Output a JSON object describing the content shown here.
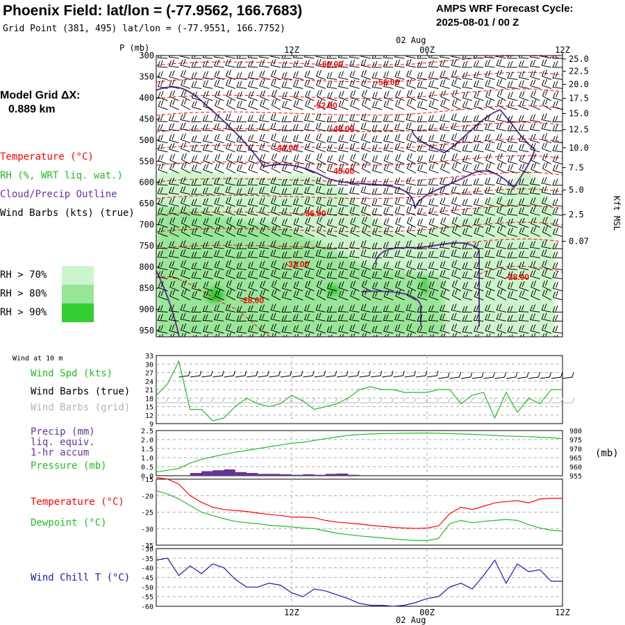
{
  "header": {
    "title": "Phoenix Field:  lat/lon = (-77.9562, 166.7683)",
    "subtitle": "Grid Point (381, 495) lat/lon = (-77.9551, 166.7752)",
    "forecast_label": "AMPS WRF Forecast Cycle:",
    "forecast_cycle": "2025-08-01 / 00  Z",
    "model_grid_label": "Model Grid ΔX:",
    "model_grid_value": "0.889 km"
  },
  "legend": {
    "temperature": "Temperature (°C)",
    "rh": "RH (%, WRT liq. wat.)",
    "cloud": "Cloud/Precip Outline",
    "wind": "Wind Barbs (kts) (true)",
    "rh_bins": [
      {
        "label": "RH > 70%",
        "color": "#ccf5cc"
      },
      {
        "label": "RH > 80%",
        "color": "#99e699"
      },
      {
        "label": "RH > 90%",
        "color": "#33cc33"
      }
    ]
  },
  "colors": {
    "temperature": "#ff0000",
    "rh_light": "#ccf5cc",
    "rh_mid": "#99e699",
    "rh_dark": "#33cc33",
    "cloud": "#663399",
    "wind": "#000000",
    "wind_grid": "#b4b4b4",
    "speed": "#22bb22",
    "pressure": "#22bb22",
    "precip": "#663399",
    "dewpoint": "#22bb22",
    "windchill": "#1a1aaa"
  },
  "chart_data": [
    {
      "type": "heatmap",
      "name": "upper-air cross-section",
      "xlabel_top": [
        "12Z",
        "02 Aug\n00Z",
        "12Z"
      ],
      "x_ticks": [
        {
          "label": "12Z",
          "hour": 12
        },
        {
          "label": "00Z",
          "hour": 24
        },
        {
          "label": "12Z",
          "hour": 36
        }
      ],
      "date_label": "02 Aug",
      "x_range_hours": [
        0,
        36
      ],
      "ylabel": "P (mb)",
      "pressure_ticks": [
        300,
        350,
        400,
        450,
        500,
        550,
        600,
        650,
        700,
        750,
        800,
        850,
        900,
        950
      ],
      "height_label": "Kft MSL",
      "height_ticks": [
        {
          "label": "25.0",
          "p": 308
        },
        {
          "label": "22.5",
          "p": 337
        },
        {
          "label": "20.0",
          "p": 368
        },
        {
          "label": "17.5",
          "p": 401
        },
        {
          "label": "15.0",
          "p": 437
        },
        {
          "label": "12.5",
          "p": 475
        },
        {
          "label": "10.0",
          "p": 518
        },
        {
          "label": "7.5",
          "p": 565
        },
        {
          "label": "5.0",
          "p": 618
        },
        {
          "label": "2.5",
          "p": 676
        },
        {
          "label": "0.07",
          "p": 739
        }
      ],
      "temperature_contours": [
        {
          "label": "-60.00",
          "hour": 15.5,
          "p": 327
        },
        {
          "label": "-56.00",
          "hour": 20.5,
          "p": 370
        },
        {
          "label": "-52.00",
          "hour": 15.0,
          "p": 425
        },
        {
          "label": "-48.00",
          "hour": 16.5,
          "p": 480
        },
        {
          "label": "-44.00",
          "hour": 11.5,
          "p": 525
        },
        {
          "label": "-40.00",
          "hour": 16.5,
          "p": 580
        },
        {
          "label": "-36.00",
          "hour": 14.0,
          "p": 680
        },
        {
          "label": "-32.00",
          "hour": 12.5,
          "p": 800
        },
        {
          "label": "-28.00",
          "hour": 32.0,
          "p": 830
        },
        {
          "label": "-28.00",
          "hour": 8.5,
          "p": 885
        }
      ]
    },
    {
      "type": "line",
      "name": "Wind at 10 m",
      "panel_label": "Wind at 10 m",
      "series_labels": [
        "Wind Spd (kts)",
        "Wind Barbs (true)",
        "Wind Barbs (grid)"
      ],
      "ylim": [
        9,
        33
      ],
      "y_ticks": [
        9,
        12,
        15,
        18,
        21,
        24,
        27,
        30,
        33
      ],
      "x": [
        0,
        1,
        2,
        3,
        4,
        5,
        6,
        7,
        8,
        9,
        10,
        11,
        12,
        13,
        14,
        15,
        16,
        17,
        18,
        19,
        20,
        21,
        22,
        23,
        24,
        25,
        26,
        27,
        28,
        29,
        30,
        31,
        32,
        33,
        34,
        35,
        36
      ],
      "series": [
        {
          "name": "Wind Spd (kts)",
          "values": [
            19,
            23,
            31,
            14,
            14,
            10,
            11,
            15,
            18,
            16,
            15,
            16,
            19,
            17,
            14,
            15,
            16,
            18,
            21,
            22,
            21,
            21,
            20,
            20,
            20,
            21,
            21,
            16,
            19,
            20,
            11,
            20,
            13,
            18,
            16,
            21,
            21
          ]
        }
      ]
    },
    {
      "type": "bar",
      "name": "Precip / Pressure",
      "series_labels": [
        "Precip (mm)",
        "liq. equiv.",
        "1-hr accum",
        "Pressure (mb)"
      ],
      "precip_ylim": [
        0,
        2.5
      ],
      "precip_ticks": [
        "0.0",
        "0.5",
        "1.0",
        "1.5",
        "2.0",
        "2.5"
      ],
      "pressure_ylim": [
        955,
        980
      ],
      "pressure_ticks": [
        "955",
        "960",
        "965",
        "970",
        "975",
        "980"
      ],
      "pressure_unit": "(mb)",
      "x": [
        0,
        1,
        2,
        3,
        4,
        5,
        6,
        7,
        8,
        9,
        10,
        11,
        12,
        13,
        14,
        15,
        16,
        17,
        18,
        19,
        20,
        21,
        22,
        23,
        24,
        25,
        26,
        27,
        28,
        29,
        30,
        31,
        32,
        33,
        34,
        35,
        36
      ],
      "series": [
        {
          "name": "Precip (mm)",
          "values": [
            0,
            0,
            0,
            0.15,
            0.25,
            0.3,
            0.35,
            0.2,
            0.15,
            0.1,
            0.1,
            0.08,
            0.05,
            0.08,
            0.05,
            0.1,
            0.12,
            0.05,
            0,
            0,
            0,
            0,
            0,
            0,
            0,
            0,
            0,
            0,
            0,
            0,
            0,
            0,
            0,
            0,
            0,
            0,
            0
          ]
        },
        {
          "name": "Pressure (mb)",
          "values": [
            957,
            958,
            959,
            962,
            964,
            965.5,
            966.8,
            968,
            969,
            970,
            971,
            972,
            973,
            973.5,
            974.5,
            975.5,
            976.5,
            977.3,
            977.8,
            978.1,
            978.3,
            978.4,
            978.5,
            978.6,
            978.6,
            978.5,
            978.3,
            978.1,
            977.9,
            977.6,
            977.3,
            977,
            976.8,
            976.6,
            976.3,
            976,
            975.5
          ]
        }
      ]
    },
    {
      "type": "line",
      "name": "Temperature / Dewpoint",
      "series_labels": [
        "Temperature (°C)",
        "Dewpoint (°C)"
      ],
      "ylim": [
        -35,
        -15
      ],
      "y_ticks": [
        -35,
        -30,
        -25,
        -20,
        -15
      ],
      "x": [
        0,
        1,
        2,
        3,
        4,
        5,
        6,
        7,
        8,
        9,
        10,
        11,
        12,
        13,
        14,
        15,
        16,
        17,
        18,
        19,
        20,
        21,
        22,
        23,
        24,
        25,
        26,
        27,
        28,
        29,
        30,
        31,
        32,
        33,
        34,
        35,
        36
      ],
      "series": [
        {
          "name": "Temperature (°C)",
          "values": [
            -14.5,
            -15,
            -16.5,
            -20,
            -22,
            -23.5,
            -24.2,
            -24.5,
            -24.8,
            -25.3,
            -25.7,
            -26,
            -26.5,
            -26.5,
            -26.7,
            -27.5,
            -28,
            -28.3,
            -28.6,
            -29,
            -29.3,
            -29.6,
            -29.8,
            -29.9,
            -29.8,
            -29.2,
            -25.5,
            -23.5,
            -24.2,
            -23.2,
            -22.2,
            -21.8,
            -21.5,
            -22.2,
            -21,
            -20.8,
            -20.8
          ]
        },
        {
          "name": "Dewpoint (°C)",
          "values": [
            -18.5,
            -19.5,
            -21,
            -23,
            -25,
            -26,
            -27,
            -27.8,
            -28.2,
            -28.5,
            -29,
            -29.2,
            -29.5,
            -29.8,
            -30,
            -30.7,
            -31.4,
            -31.8,
            -32.2,
            -32.5,
            -32.8,
            -33.1,
            -33.4,
            -33.6,
            -33.6,
            -33,
            -28.5,
            -27.5,
            -28.2,
            -27.8,
            -27.5,
            -27.2,
            -27.5,
            -28.8,
            -29.8,
            -30.5,
            -30.7
          ]
        }
      ]
    },
    {
      "type": "line",
      "name": "Wind Chill",
      "series_labels": [
        "Wind Chill T (°C)"
      ],
      "ylim": [
        -60,
        -30
      ],
      "y_ticks": [
        -60,
        -55,
        -50,
        -45,
        -40,
        -35,
        -30
      ],
      "x": [
        0,
        1,
        2,
        3,
        4,
        5,
        6,
        7,
        8,
        9,
        10,
        11,
        12,
        13,
        14,
        15,
        16,
        17,
        18,
        19,
        20,
        21,
        22,
        23,
        24,
        25,
        26,
        27,
        28,
        29,
        30,
        31,
        32,
        33,
        34,
        35,
        36
      ],
      "series": [
        {
          "name": "Wind Chill T (°C)",
          "values": [
            -36,
            -35,
            -44,
            -39,
            -43,
            -38,
            -40,
            -46,
            -50,
            -50,
            -48,
            -49,
            -53,
            -55,
            -51,
            -52,
            -54,
            -56,
            -58.5,
            -59.5,
            -59.5,
            -60,
            -59.5,
            -58,
            -56,
            -55,
            -50,
            -48,
            -51,
            -44,
            -36,
            -48,
            -38,
            -42,
            -41,
            -47,
            -47
          ]
        }
      ]
    }
  ]
}
